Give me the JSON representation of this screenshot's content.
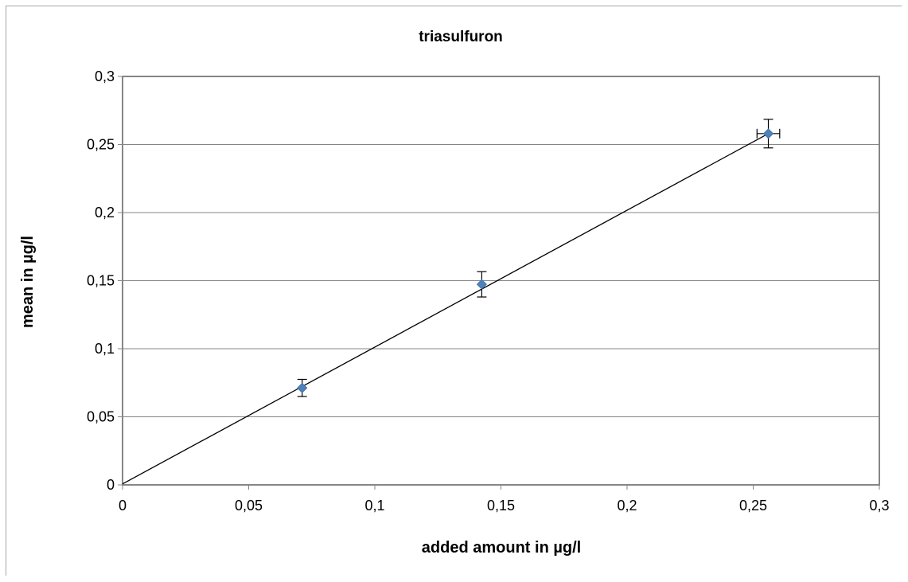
{
  "chart_data": {
    "type": "scatter",
    "title": "triasulfuron",
    "xlabel": "added amount in µg/l",
    "ylabel": "mean in µg/l",
    "xlim": [
      0,
      0.3
    ],
    "ylim": [
      0,
      0.3
    ],
    "x_ticks": [
      "0",
      "0,05",
      "0,1",
      "0,15",
      "0,2",
      "0,25",
      "0,3"
    ],
    "y_ticks": [
      "0",
      "0,05",
      "0,1",
      "0,15",
      "0,2",
      "0,25",
      "0,3"
    ],
    "grid": "horizontal",
    "series": [
      {
        "color": "#4f81bd",
        "marker": "diamond",
        "points": [
          {
            "x": 0.0712,
            "y": 0.0712,
            "y_err": 0.0063,
            "x_err": 0
          },
          {
            "x": 0.1424,
            "y": 0.1473,
            "y_err": 0.0093,
            "x_err": 0
          },
          {
            "x": 0.256,
            "y": 0.258,
            "y_err": 0.0105,
            "x_err": 0.0045
          }
        ]
      }
    ],
    "trendline": {
      "type": "linear",
      "x": [
        0,
        0.256
      ],
      "y": [
        0.0007,
        0.258
      ],
      "color": "#000000"
    }
  }
}
